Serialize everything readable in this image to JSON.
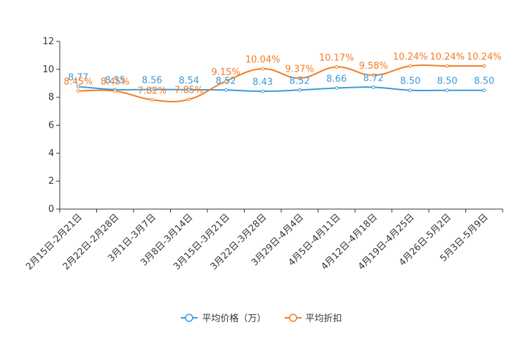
{
  "chart_data": {
    "type": "line",
    "categories": [
      "2月15日-2月21日",
      "2月22日-2月28日",
      "3月1日-3月7日",
      "3月8日-3月14日",
      "3月15日-3月21日",
      "3月22日-3月28日",
      "3月29日-4月4日",
      "4月5日-4月11日",
      "4月12日-4月18日",
      "4月19日-4月25日",
      "4月26日-5月2日",
      "5月3日-5月9日"
    ],
    "ylim": [
      0,
      12
    ],
    "yticks": [
      0,
      2,
      4,
      6,
      8,
      10,
      12
    ],
    "series": [
      {
        "name": "平均价格（万）",
        "color": "#3a9ad9",
        "values": [
          8.77,
          8.55,
          8.56,
          8.54,
          8.52,
          8.43,
          8.52,
          8.66,
          8.72,
          8.5,
          8.5,
          8.5
        ],
        "labels": [
          "8.77",
          "8.55",
          "8.56",
          "8.54",
          "8.52",
          "8.43",
          "8.52",
          "8.66",
          "8.72",
          "8.50",
          "8.50",
          "8.50"
        ]
      },
      {
        "name": "平均折扣",
        "color": "#f47b1f",
        "values": [
          8.45,
          8.45,
          7.82,
          7.85,
          9.15,
          10.04,
          9.37,
          10.17,
          9.58,
          10.24,
          10.24,
          10.24
        ],
        "labels": [
          "8.45%",
          "8.45%",
          "7.82%",
          "7.85%",
          "9.15%",
          "10.04%",
          "9.37%",
          "10.17%",
          "9.58%",
          "10.24%",
          "10.24%",
          "10.24%"
        ]
      }
    ]
  }
}
